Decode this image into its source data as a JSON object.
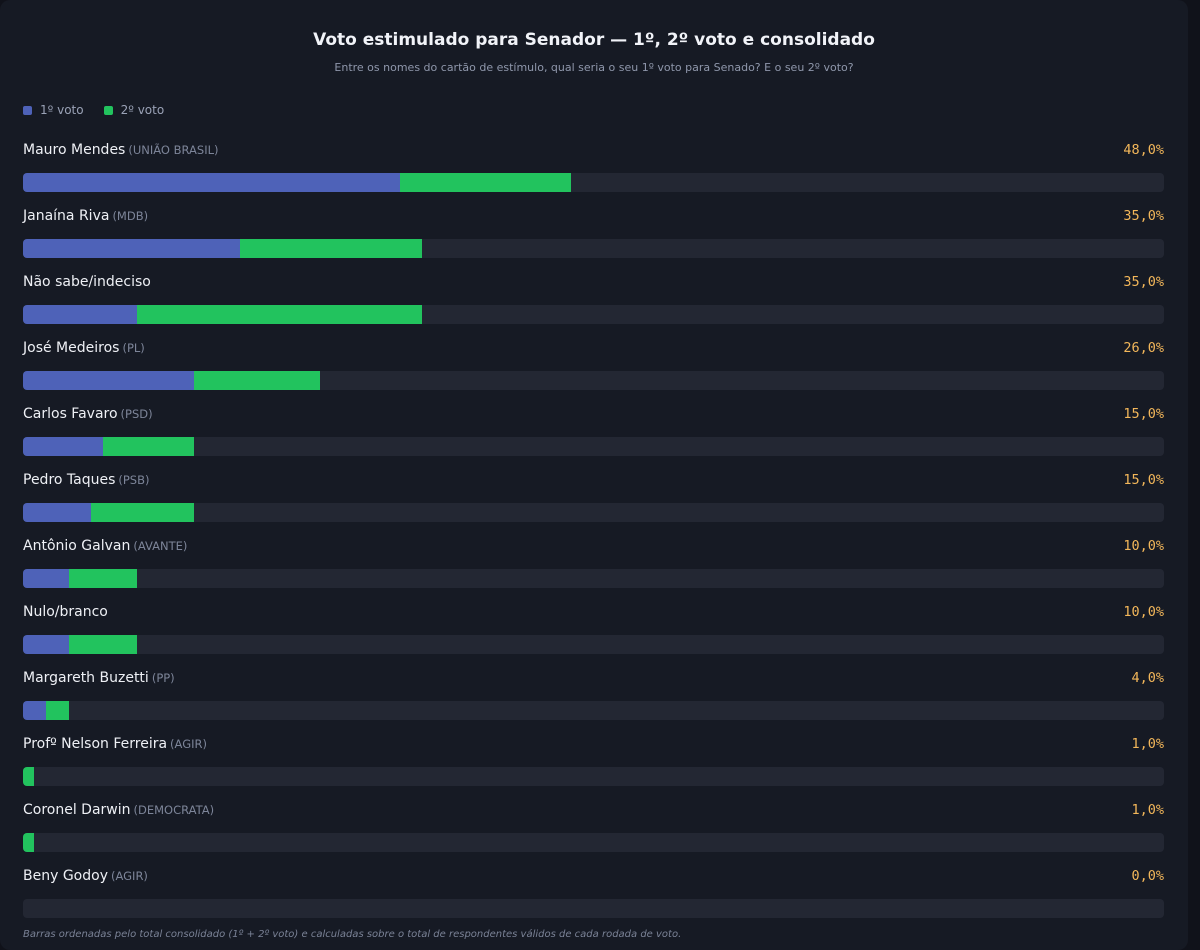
{
  "header": {
    "title": "Voto estimulado para Senador — 1º, 2º voto e consolidado",
    "subtitle": "Entre os nomes do cartão de estímulo, qual seria o seu 1º voto para Senado? E o seu 2º voto?"
  },
  "colors": {
    "background": "#161a24",
    "voto1": "#4e62b8",
    "voto2": "#22c35e",
    "total": "#f3b75a",
    "track": "#232733"
  },
  "footnote": "Barras ordenadas pelo total consolidado (1º + 2º voto) e calculadas sobre o total de respondentes válidos de cada rodada de voto.",
  "chart_data": {
    "type": "bar",
    "orientation": "horizontal",
    "stacked": true,
    "xlim": [
      0,
      100
    ],
    "legend_position": "top-left",
    "series": [
      {
        "name": "1º voto",
        "values": [
          33,
          19,
          10,
          15,
          7,
          6,
          4,
          4,
          2,
          0,
          0,
          0
        ]
      },
      {
        "name": "2º voto",
        "values": [
          15,
          16,
          25,
          11,
          8,
          9,
          6,
          6,
          2,
          1,
          1,
          0
        ]
      }
    ],
    "categories": [
      {
        "name": "Mauro Mendes",
        "party": "(UNIÃO BRASIL)",
        "total_label": "48,0%"
      },
      {
        "name": "Janaína Riva",
        "party": "(MDB)",
        "total_label": "35,0%"
      },
      {
        "name": "Não sabe/indeciso",
        "party": "",
        "total_label": "35,0%"
      },
      {
        "name": "José Medeiros",
        "party": "(PL)",
        "total_label": "26,0%"
      },
      {
        "name": "Carlos Favaro",
        "party": "(PSD)",
        "total_label": "15,0%"
      },
      {
        "name": "Pedro Taques",
        "party": "(PSB)",
        "total_label": "15,0%"
      },
      {
        "name": "Antônio Galvan",
        "party": "(AVANTE)",
        "total_label": "10,0%"
      },
      {
        "name": "Nulo/branco",
        "party": "",
        "total_label": "10,0%"
      },
      {
        "name": "Margareth Buzetti",
        "party": "(PP)",
        "total_label": "4,0%"
      },
      {
        "name": "Profº Nelson Ferreira",
        "party": "(AGIR)",
        "total_label": "1,0%"
      },
      {
        "name": "Coronel Darwin",
        "party": "(DEMOCRATA)",
        "total_label": "1,0%"
      },
      {
        "name": "Beny Godoy",
        "party": "(AGIR)",
        "total_label": "0,0%"
      }
    ]
  }
}
